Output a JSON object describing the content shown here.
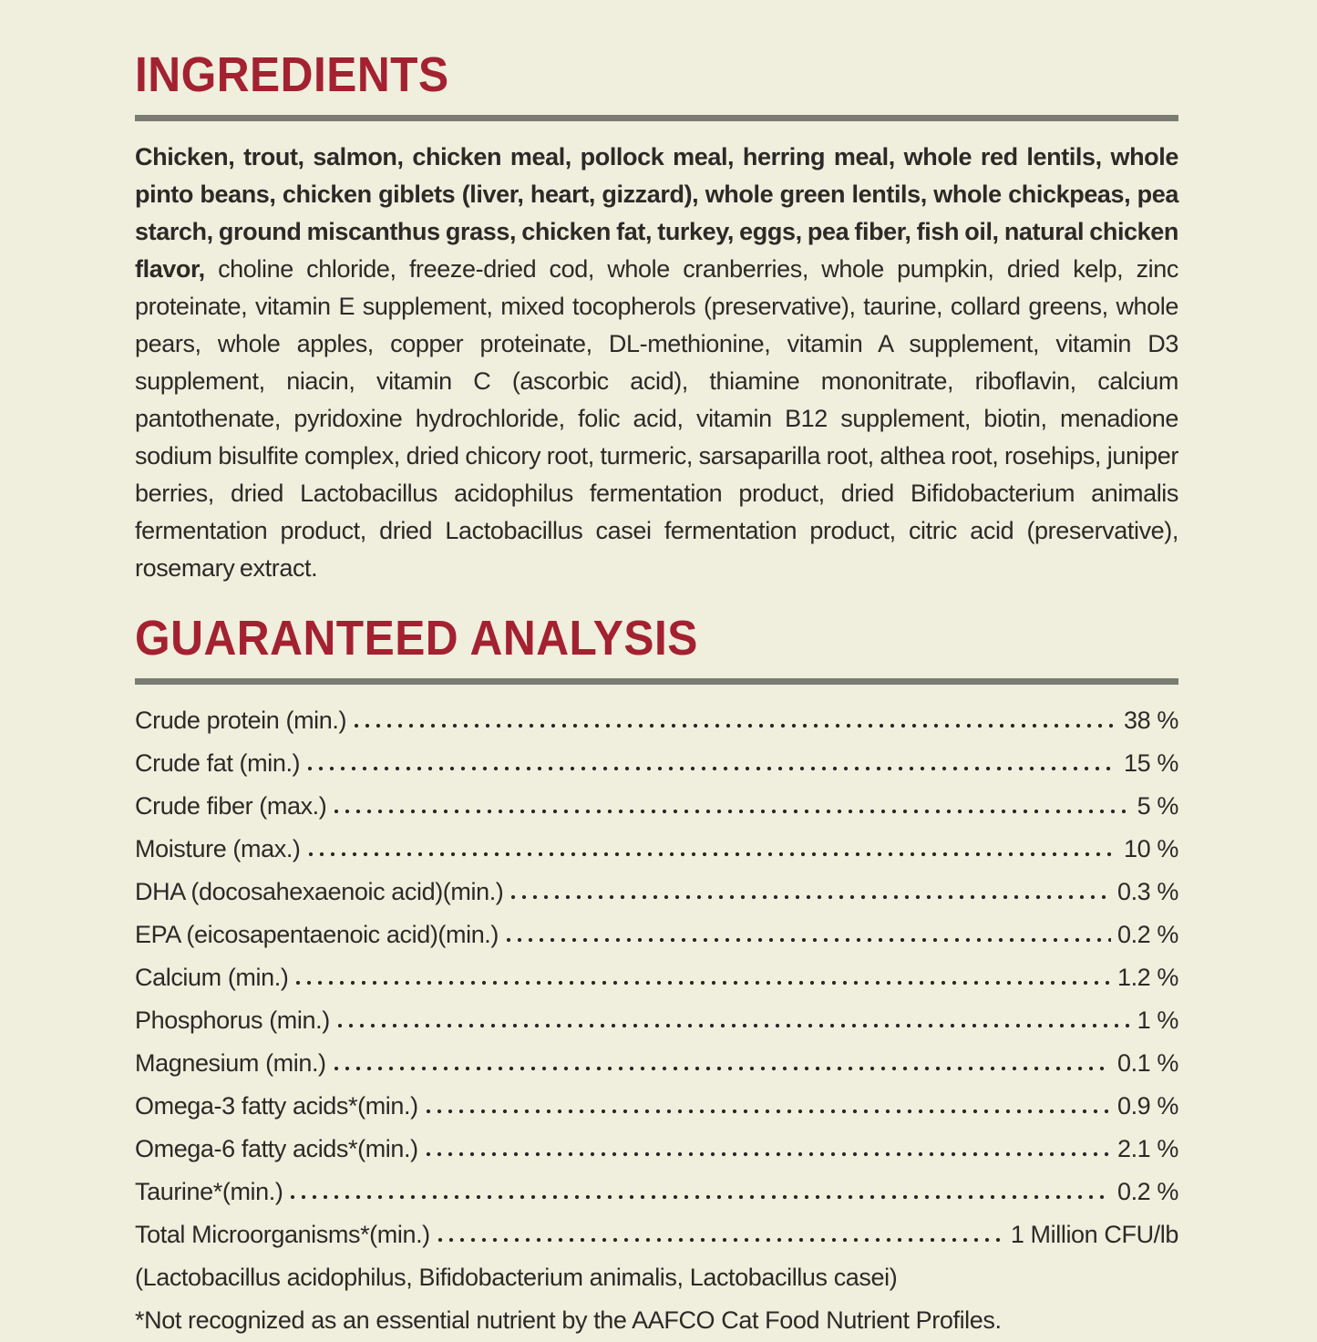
{
  "page": {
    "background_color": "#f0eedd",
    "accent_color": "#a32130",
    "text_color": "#2b2a26",
    "rule_color": "#7a7c72"
  },
  "ingredients": {
    "title": "INGREDIENTS",
    "bold_text": "Chicken, trout, salmon, chicken meal, pollock meal, herring meal, whole red lentils, whole pinto beans, chicken giblets (liver, heart, gizzard), whole green lentils, whole chickpeas, pea starch, ground miscanthus grass, chicken fat, turkey, eggs, pea fiber, fish oil, natural chicken flavor,",
    "regular_text": " choline chloride, freeze-dried cod, whole cranberries, whole pumpkin, dried kelp, zinc proteinate, vitamin E supplement, mixed tocopherols (preservative), taurine, collard greens, whole pears, whole apples, copper proteinate, DL-methionine, vitamin A supplement, vitamin D3 supplement, niacin, vitamin C (ascorbic acid), thiamine mononitrate, riboflavin, calcium pantothenate, pyridoxine hydrochloride, folic acid, vitamin B12 supplement, biotin, menadione sodium bisulfite complex, dried chicory root, turmeric, sarsaparilla root, althea root, rosehips, juniper berries, dried Lactobacillus acidophilus fermentation product, dried Bifidobacterium animalis fermentation product, dried Lactobacillus casei fermentation product, citric acid (preservative), rosemary extract."
  },
  "analysis": {
    "title": "GUARANTEED ANALYSIS",
    "rows": [
      {
        "label": "Crude protein (min.)",
        "value": "38 %"
      },
      {
        "label": "Crude fat (min.)",
        "value": "15 %"
      },
      {
        "label": "Crude fiber (max.)",
        "value": "5 %"
      },
      {
        "label": "Moisture (max.)",
        "value": "10 %"
      },
      {
        "label": "DHA (docosahexaenoic acid)(min.)",
        "value": "0.3 %"
      },
      {
        "label": "EPA (eicosapentaenoic acid)(min.)",
        "value": "0.2 %"
      },
      {
        "label": "Calcium (min.)",
        "value": "1.2 %"
      },
      {
        "label": "Phosphorus (min.)",
        "value": "1 %"
      },
      {
        "label": "Magnesium (min.)",
        "value": "0.1 %"
      },
      {
        "label": "Omega-3 fatty acids*(min.)",
        "value": "0.9 %"
      },
      {
        "label": "Omega-6 fatty acids*(min.)",
        "value": "2.1 %"
      },
      {
        "label": "Taurine*(min.)",
        "value": "0.2 %"
      },
      {
        "label": "Total Microorganisms*(min.)",
        "value": "1 Million CFU/lb"
      }
    ],
    "notes": [
      "(Lactobacillus acidophilus, Bifidobacterium animalis, Lactobacillus casei)",
      "*Not recognized as an essential nutrient by the AAFCO Cat Food Nutrient Profiles."
    ]
  }
}
